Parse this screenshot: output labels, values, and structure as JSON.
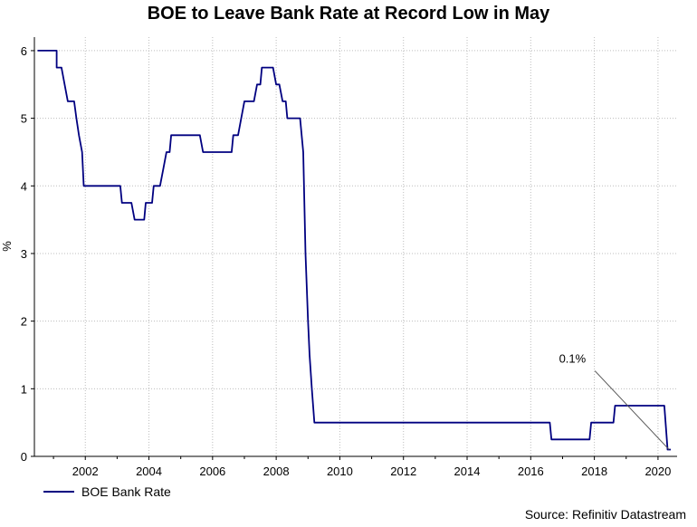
{
  "chart_data": {
    "type": "line",
    "title": "BOE to Leave Bank Rate at Record Low in May",
    "ylabel": "%",
    "xlabel": "",
    "xlim": [
      2000.4,
      2020.6
    ],
    "ylim": [
      0,
      6.2
    ],
    "x_ticks": [
      2002,
      2004,
      2006,
      2008,
      2010,
      2012,
      2014,
      2016,
      2018,
      2020
    ],
    "y_ticks": [
      0,
      1,
      2,
      3,
      4,
      5,
      6
    ],
    "grid": true,
    "legend_position": "bottom-left",
    "series": [
      {
        "name": "BOE Bank Rate",
        "color": "#000080",
        "points": [
          [
            2000.5,
            6.0
          ],
          [
            2001.1,
            6.0
          ],
          [
            2001.1,
            5.75
          ],
          [
            2001.25,
            5.75
          ],
          [
            2001.35,
            5.5
          ],
          [
            2001.45,
            5.25
          ],
          [
            2001.65,
            5.25
          ],
          [
            2001.72,
            5.0
          ],
          [
            2001.8,
            4.75
          ],
          [
            2001.9,
            4.5
          ],
          [
            2001.95,
            4.0
          ],
          [
            2003.1,
            4.0
          ],
          [
            2003.15,
            3.75
          ],
          [
            2003.45,
            3.75
          ],
          [
            2003.55,
            3.5
          ],
          [
            2003.85,
            3.5
          ],
          [
            2003.9,
            3.75
          ],
          [
            2004.1,
            3.75
          ],
          [
            2004.15,
            4.0
          ],
          [
            2004.35,
            4.0
          ],
          [
            2004.45,
            4.25
          ],
          [
            2004.55,
            4.5
          ],
          [
            2004.65,
            4.5
          ],
          [
            2004.7,
            4.75
          ],
          [
            2005.6,
            4.75
          ],
          [
            2005.7,
            4.5
          ],
          [
            2006.6,
            4.5
          ],
          [
            2006.65,
            4.75
          ],
          [
            2006.8,
            4.75
          ],
          [
            2006.9,
            5.0
          ],
          [
            2007.0,
            5.25
          ],
          [
            2007.3,
            5.25
          ],
          [
            2007.4,
            5.5
          ],
          [
            2007.5,
            5.5
          ],
          [
            2007.55,
            5.75
          ],
          [
            2007.9,
            5.75
          ],
          [
            2008.0,
            5.5
          ],
          [
            2008.1,
            5.5
          ],
          [
            2008.2,
            5.25
          ],
          [
            2008.3,
            5.25
          ],
          [
            2008.35,
            5.0
          ],
          [
            2008.75,
            5.0
          ],
          [
            2008.85,
            4.5
          ],
          [
            2008.92,
            3.0
          ],
          [
            2009.0,
            2.0
          ],
          [
            2009.05,
            1.5
          ],
          [
            2009.12,
            1.0
          ],
          [
            2009.2,
            0.5
          ],
          [
            2016.6,
            0.5
          ],
          [
            2016.65,
            0.25
          ],
          [
            2017.85,
            0.25
          ],
          [
            2017.9,
            0.5
          ],
          [
            2018.6,
            0.5
          ],
          [
            2018.65,
            0.75
          ],
          [
            2020.2,
            0.75
          ],
          [
            2020.3,
            0.1
          ],
          [
            2020.4,
            0.1
          ]
        ]
      }
    ],
    "annotation": {
      "text": "0.1%",
      "x": 2020.35,
      "y": 0.1
    }
  },
  "legend": {
    "label": "BOE Bank Rate"
  },
  "source": "Source: Refinitiv Datastream"
}
